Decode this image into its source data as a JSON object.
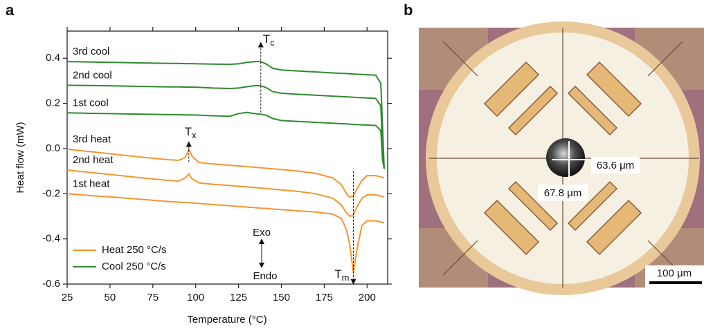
{
  "chart_data": {
    "type": "line",
    "panel_label": "a",
    "xlabel": "Temperature (°C)",
    "ylabel": "Heat flow (mW)",
    "xlim": [
      25,
      212
    ],
    "ylim": [
      -0.6,
      0.52
    ],
    "xticks": [
      25,
      50,
      75,
      100,
      125,
      150,
      175,
      200
    ],
    "yticks": [
      -0.6,
      -0.4,
      -0.2,
      {
        "value": 0,
        "label": "0.0"
      },
      0.2,
      0.4
    ],
    "x": [
      25,
      40,
      55,
      70,
      85,
      90,
      94,
      96,
      98,
      102,
      110,
      120,
      125,
      130,
      135,
      138,
      141,
      145,
      150,
      160,
      170,
      180,
      185,
      188,
      190,
      192,
      194,
      197,
      200,
      205,
      208,
      209,
      210
    ],
    "series": [
      {
        "name": "3rd cool",
        "color": "#2e8a2e",
        "values": [
          0.385,
          0.383,
          0.381,
          0.379,
          0.377,
          0.377,
          0.376,
          0.376,
          0.376,
          0.375,
          0.374,
          0.373,
          0.375,
          0.382,
          0.385,
          0.385,
          0.375,
          0.355,
          0.348,
          0.343,
          0.339,
          0.335,
          0.333,
          0.332,
          0.331,
          0.33,
          0.329,
          0.328,
          0.327,
          0.325,
          0.29,
          0.1,
          -0.09
        ]
      },
      {
        "name": "2nd cool",
        "color": "#2e8a2e",
        "values": [
          0.28,
          0.279,
          0.277,
          0.275,
          0.273,
          0.273,
          0.272,
          0.272,
          0.272,
          0.271,
          0.268,
          0.266,
          0.268,
          0.274,
          0.279,
          0.278,
          0.27,
          0.252,
          0.245,
          0.24,
          0.236,
          0.232,
          0.23,
          0.229,
          0.228,
          0.227,
          0.226,
          0.225,
          0.224,
          0.222,
          0.19,
          0.0,
          -0.09
        ]
      },
      {
        "name": "1st cool",
        "color": "#2e8a2e",
        "values": [
          0.158,
          0.156,
          0.154,
          0.152,
          0.15,
          0.15,
          0.149,
          0.149,
          0.149,
          0.148,
          0.145,
          0.143,
          0.155,
          0.16,
          0.154,
          0.152,
          0.148,
          0.133,
          0.124,
          0.12,
          0.116,
          0.112,
          0.11,
          0.109,
          0.108,
          0.107,
          0.106,
          0.105,
          0.104,
          0.102,
          0.08,
          -0.05,
          -0.09
        ]
      },
      {
        "name": "3rd heat",
        "color": "#f39530",
        "values": [
          -0.003,
          -0.015,
          -0.027,
          -0.039,
          -0.05,
          -0.052,
          -0.04,
          -0.002,
          -0.035,
          -0.062,
          -0.068,
          -0.074,
          -0.077,
          -0.08,
          -0.083,
          -0.085,
          -0.087,
          -0.09,
          -0.093,
          -0.1,
          -0.11,
          -0.13,
          -0.16,
          -0.2,
          -0.215,
          -0.21,
          -0.18,
          -0.14,
          -0.12,
          -0.12,
          -0.125,
          -0.128,
          -0.13
        ]
      },
      {
        "name": "2nd heat",
        "color": "#f39530",
        "values": [
          -0.095,
          -0.107,
          -0.119,
          -0.131,
          -0.142,
          -0.144,
          -0.13,
          -0.112,
          -0.135,
          -0.152,
          -0.158,
          -0.164,
          -0.167,
          -0.17,
          -0.173,
          -0.175,
          -0.177,
          -0.18,
          -0.183,
          -0.19,
          -0.2,
          -0.22,
          -0.25,
          -0.285,
          -0.3,
          -0.295,
          -0.26,
          -0.22,
          -0.205,
          -0.205,
          -0.21,
          -0.212,
          -0.215
        ]
      },
      {
        "name": "1st heat",
        "color": "#f39530",
        "values": [
          -0.2,
          -0.209,
          -0.217,
          -0.226,
          -0.235,
          -0.237,
          -0.239,
          -0.24,
          -0.241,
          -0.243,
          -0.248,
          -0.253,
          -0.256,
          -0.259,
          -0.262,
          -0.264,
          -0.265,
          -0.268,
          -0.27,
          -0.276,
          -0.281,
          -0.29,
          -0.31,
          -0.36,
          -0.43,
          -0.55,
          -0.45,
          -0.34,
          -0.32,
          -0.32,
          -0.325,
          -0.327,
          -0.33
        ]
      }
    ],
    "legend": [
      {
        "name": "Heat 250 °C/s",
        "color": "#f39530"
      },
      {
        "name": "Cool 250 °C/s",
        "color": "#2e8a2e"
      }
    ],
    "annotations": [
      {
        "text": "T",
        "sub": "c",
        "x": 138
      },
      {
        "text": "T",
        "sub": "x",
        "x": 96
      },
      {
        "text": "T",
        "sub": "m",
        "x": 192
      }
    ],
    "direction": {
      "up": "Exo",
      "down": "Endo"
    }
  },
  "micrograph": {
    "panel_label": "b",
    "width_label": "63.6 μm",
    "height_label": "67.8 μm",
    "scale_bar": "100  μm"
  }
}
